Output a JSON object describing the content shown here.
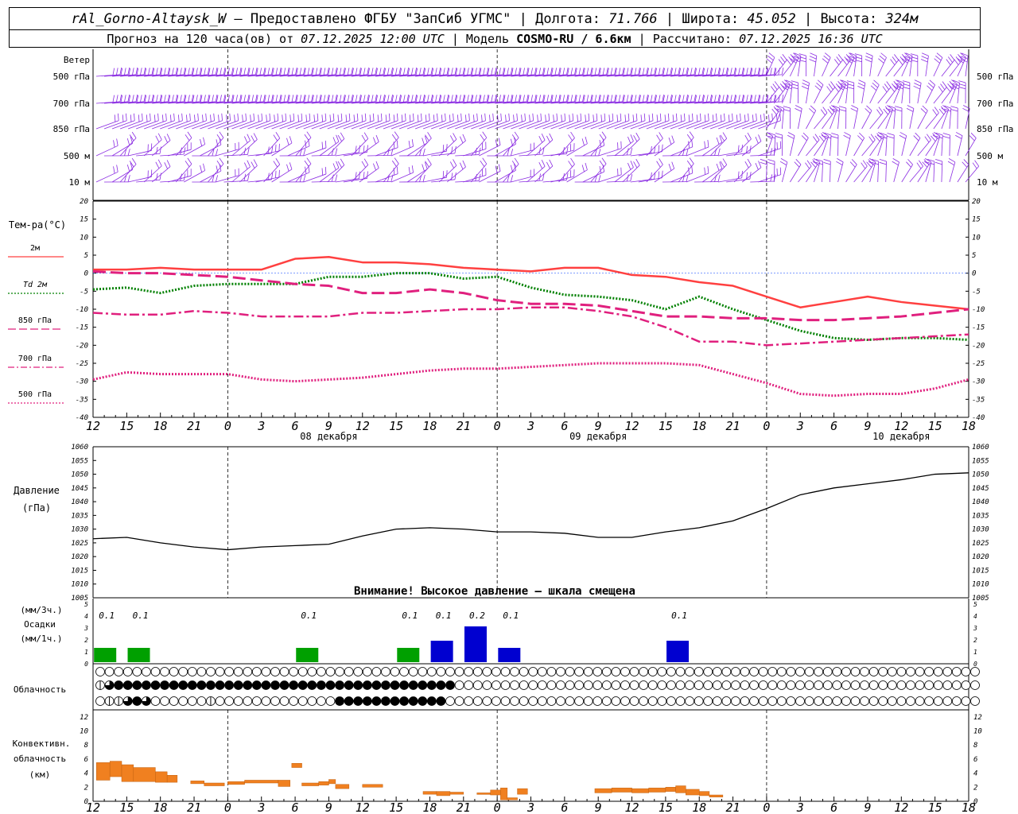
{
  "header": {
    "station": "rAl_Gorno-Altaysk_W",
    "provider": "— Предоставлено ФГБУ \"ЗапСиб УГМС\"",
    "lon_label": "Долгота:",
    "lon_value": "71.766",
    "lat_label": "Широта:",
    "lat_value": "45.052",
    "alt_label": "Высота:",
    "alt_value": "324м",
    "forecast_label": "Прогноз на 120 часа(ов) от",
    "forecast_start": "07.12.2025 12:00 UTC",
    "model_label": "Модель",
    "model_name": "COSMO-RU / 6.6км",
    "calc_label": "Рассчитано:",
    "calc_time": "07.12.2025 16:36 UTC",
    "sep": "|"
  },
  "colors": {
    "wind": "#8a2be2",
    "t2m": "#ff4040",
    "td2m": "#008000",
    "t850": "#e0207e",
    "t700": "#e0207e",
    "t500": "#e0207e",
    "pressure": "#000000",
    "precip_green": "#00a000",
    "precip_blue": "#0000d0",
    "convective": "#f08020"
  },
  "chart_data": {
    "type": "line",
    "x_hours": [
      12,
      15,
      18,
      21,
      0,
      3,
      6,
      9,
      12,
      15,
      18,
      21,
      0,
      3,
      6,
      9,
      12,
      15,
      18,
      21,
      0,
      3,
      6,
      9,
      12,
      15,
      18
    ],
    "x_tick_labels": [
      "12",
      "15",
      "18",
      "21",
      "0",
      "3",
      "6",
      "9",
      "12",
      "15",
      "18",
      "21",
      "0",
      "3",
      "6",
      "9",
      "12",
      "15",
      "18",
      "21",
      "0",
      "3",
      "6",
      "9",
      "12",
      "15",
      "18"
    ],
    "date_labels": [
      {
        "label": "08 декабря",
        "at_index": 7
      },
      {
        "label": "09 декабря",
        "at_index": 15
      },
      {
        "label": "10 декабря",
        "at_index": 24
      }
    ],
    "wind_panel": {
      "label": "Ветер",
      "levels": [
        "500 гПа",
        "700 гПа",
        "850 гПа",
        "500 м",
        "10 м"
      ]
    },
    "temperature_panel": {
      "ylabel": "Тем-ра(°C)",
      "ylim": [
        -40,
        20
      ],
      "yticks": [
        20,
        15,
        10,
        5,
        0,
        -5,
        -10,
        -15,
        -20,
        -25,
        -30,
        -35,
        -40
      ],
      "series": [
        {
          "name": "2м",
          "style": "solid",
          "color": "#ff4040",
          "values": [
            1,
            1,
            1.5,
            1,
            1,
            1,
            4,
            4.5,
            3,
            3,
            2.5,
            1.5,
            1,
            0.5,
            1.5,
            1.5,
            -0.5,
            -1,
            -2.5,
            -3.5,
            -6.5,
            -9.5,
            -8,
            -6.5,
            -8,
            -9,
            -10
          ]
        },
        {
          "name": "Td 2м",
          "style": "dotted",
          "color": "#008000",
          "values": [
            -4.5,
            -4,
            -5.5,
            -3.5,
            -3,
            -3,
            -3,
            -1,
            -1,
            0,
            0,
            -1.5,
            -1,
            -4,
            -6,
            -6.5,
            -7.5,
            -10,
            -6.5,
            -10,
            -13,
            -16,
            -18,
            -18.5,
            -18,
            -18,
            -18.5
          ]
        },
        {
          "name": "850 гПа",
          "style": "longdash",
          "color": "#e0207e",
          "values": [
            0.5,
            0,
            0,
            -0.5,
            -1,
            -2,
            -3,
            -3.5,
            -5.5,
            -5.5,
            -4.5,
            -5.5,
            -7.5,
            -8.5,
            -8.5,
            -9,
            -10.5,
            -12,
            -12,
            -12.5,
            -12.5,
            -13,
            -13,
            -12.5,
            -12,
            -11,
            -10
          ]
        },
        {
          "name": "700 гПа",
          "style": "dashdot",
          "color": "#e0207e",
          "values": [
            -11,
            -11.5,
            -11.5,
            -10.5,
            -11,
            -12,
            -12,
            -12,
            -11,
            -11,
            -10.5,
            -10,
            -10,
            -9.5,
            -9.5,
            -10.5,
            -12,
            -15,
            -19,
            -19,
            -20,
            -19.5,
            -19,
            -18.5,
            -18,
            -17.5,
            -17
          ]
        },
        {
          "name": "500 гПа",
          "style": "dotted",
          "color": "#e0207e",
          "values": [
            -29.5,
            -27.5,
            -28,
            -28,
            -28,
            -29.5,
            -30,
            -29.5,
            -29,
            -28,
            -27,
            -26.5,
            -26.5,
            -26,
            -25.5,
            -25,
            -25,
            -25,
            -25.5,
            -28,
            -30.5,
            -33.5,
            -34,
            -33.5,
            -33.5,
            -32,
            -29.5
          ]
        }
      ]
    },
    "pressure_panel": {
      "ylabel_1": "Давление",
      "ylabel_2": "(гПа)",
      "ylim": [
        1005,
        1060
      ],
      "yticks": [
        1060,
        1055,
        1050,
        1045,
        1040,
        1035,
        1030,
        1025,
        1020,
        1015,
        1010,
        1005
      ],
      "values": [
        1026.5,
        1027,
        1025,
        1023.5,
        1022.5,
        1023.5,
        1024,
        1024.5,
        1027.5,
        1030,
        1030.5,
        1030,
        1029,
        1029,
        1028.5,
        1027,
        1027,
        1029,
        1030.5,
        1033,
        1037.5,
        1042.5,
        1045,
        1046.5,
        1048,
        1050,
        1050.5
      ],
      "warning": "Внимание! Высокое давление – шкала смещена"
    },
    "precip_panel": {
      "ylabel_1": "(мм/3ч.)",
      "ylabel_2": "Осадки",
      "ylabel_3": "(мм/1ч.)",
      "ylim": [
        0,
        5
      ],
      "yticks": [
        5,
        4,
        3,
        2,
        1,
        0
      ],
      "labels": [
        {
          "text": "0.1",
          "hour_index": 0.5
        },
        {
          "text": "0.1",
          "hour_index": 1.5
        },
        {
          "text": "0.1",
          "hour_index": 6.5
        },
        {
          "text": "0.1",
          "hour_index": 9.5
        },
        {
          "text": "0.1",
          "hour_index": 10.5
        },
        {
          "text": "0.2",
          "hour_index": 11.5
        },
        {
          "text": "0.1",
          "hour_index": 12.5
        },
        {
          "text": "0.1",
          "hour_index": 17.5
        }
      ],
      "bars": [
        {
          "hour_index": 0.5,
          "value": 0.1,
          "kind": "green"
        },
        {
          "hour_index": 1.5,
          "value": 0.1,
          "kind": "green"
        },
        {
          "hour_index": 6.5,
          "value": 0.1,
          "kind": "green"
        },
        {
          "hour_index": 9.5,
          "value": 0.1,
          "kind": "green"
        },
        {
          "hour_index": 10.5,
          "value": 0.15,
          "kind": "blue"
        },
        {
          "hour_index": 11.5,
          "value": 0.25,
          "kind": "blue"
        },
        {
          "hour_index": 12.5,
          "value": 0.1,
          "kind": "blue"
        },
        {
          "hour_index": 17.5,
          "value": 0.15,
          "kind": "blue"
        }
      ]
    },
    "cloud_panel": {
      "label": "Облачность",
      "rows": [
        [
          0,
          0,
          0,
          0,
          0,
          0,
          0,
          0,
          0,
          0,
          0,
          0,
          0,
          0,
          0,
          0,
          0,
          0,
          0,
          0,
          0,
          0,
          0,
          0,
          0,
          0,
          0,
          0,
          0,
          0,
          0,
          0,
          0,
          0,
          0,
          0,
          0,
          0,
          0,
          0,
          0,
          0,
          0,
          0,
          0,
          0,
          0,
          0,
          0,
          0,
          0,
          0,
          0,
          0,
          0,
          0,
          0,
          0,
          0,
          0,
          0,
          0,
          0,
          0,
          0,
          0,
          0,
          0,
          0,
          0,
          0,
          0,
          0,
          0,
          0,
          0,
          0,
          0,
          0,
          0,
          0,
          0,
          0,
          0,
          0,
          0,
          0,
          0,
          0,
          0,
          0,
          0,
          0,
          0,
          0,
          0,
          0,
          0,
          0,
          0,
          0,
          0,
          0,
          0,
          0,
          0,
          0,
          0,
          0,
          0,
          0,
          0,
          0,
          0,
          0,
          0,
          0,
          0,
          0,
          0,
          0,
          0
        ],
        [
          2,
          3,
          4,
          4,
          4,
          4,
          4,
          4,
          4,
          4,
          4,
          4,
          4,
          4,
          4,
          4,
          4,
          4,
          4,
          4,
          4,
          4,
          4,
          4,
          4,
          4,
          4,
          4,
          4,
          4,
          4,
          4,
          4,
          4,
          4,
          4,
          4,
          4,
          4,
          0,
          0,
          0,
          0,
          0,
          0,
          0,
          0,
          0,
          0,
          0,
          0,
          0,
          0,
          0,
          0,
          0,
          0,
          0,
          0,
          0,
          0,
          0,
          0,
          0,
          0,
          0,
          0,
          0,
          0,
          0,
          0,
          0,
          0,
          0,
          0,
          0,
          0,
          0,
          0,
          0,
          0,
          0,
          0,
          0,
          0,
          0,
          0,
          0,
          0,
          0,
          0,
          0,
          0,
          0,
          0,
          0,
          0,
          0,
          0,
          0,
          0,
          0,
          0,
          0,
          0,
          0,
          0,
          0,
          0,
          0,
          0,
          0,
          0,
          0,
          0,
          0,
          0,
          0,
          0,
          0,
          0
        ],
        [
          0,
          2,
          2,
          3,
          4,
          3,
          0,
          0,
          0,
          0,
          0,
          0,
          2,
          0,
          0,
          0,
          0,
          0,
          0,
          0,
          0,
          0,
          0,
          0,
          0,
          0,
          4,
          4,
          4,
          4,
          4,
          4,
          4,
          4,
          4,
          4,
          4,
          4,
          0,
          0,
          0,
          0,
          0,
          0,
          0,
          0,
          0,
          0,
          0,
          0,
          0,
          0,
          0,
          0,
          0,
          0,
          0,
          0,
          0,
          0,
          0,
          0,
          0,
          0,
          0,
          0,
          0,
          0,
          0,
          0,
          0,
          0,
          0,
          0,
          0,
          0,
          0,
          0,
          0,
          0,
          0,
          0,
          0,
          0,
          0,
          0,
          0,
          0,
          0,
          0,
          0,
          0,
          0,
          0,
          0,
          0,
          0,
          0,
          0,
          0,
          0,
          0,
          0,
          0,
          0,
          0,
          0,
          0,
          0,
          0,
          0,
          0,
          0,
          0,
          0,
          0,
          0,
          0,
          0,
          0,
          0
        ]
      ]
    },
    "convective_panel": {
      "ylabel_1": "Конвективн.",
      "ylabel_2": "облачность",
      "ylabel_3": "(км)",
      "ylim": [
        0,
        13
      ],
      "yticks": [
        12,
        10,
        8,
        6,
        4,
        2,
        0
      ],
      "boxes": [
        {
          "from": 0.1,
          "to": 0.5,
          "bottom": 3,
          "top": 5.5
        },
        {
          "from": 0.5,
          "to": 0.85,
          "bottom": 3.5,
          "top": 5.7
        },
        {
          "from": 0.85,
          "to": 1.2,
          "bottom": 2.8,
          "top": 5.2
        },
        {
          "from": 1.2,
          "to": 1.85,
          "bottom": 2.8,
          "top": 4.8
        },
        {
          "from": 1.85,
          "to": 2.2,
          "bottom": 2.7,
          "top": 4.2
        },
        {
          "from": 2.2,
          "to": 2.5,
          "bottom": 2.7,
          "top": 3.7
        },
        {
          "from": 2.9,
          "to": 3.3,
          "bottom": 2.5,
          "top": 2.9
        },
        {
          "from": 3.3,
          "to": 3.9,
          "bottom": 2.2,
          "top": 2.6
        },
        {
          "from": 4,
          "to": 4.5,
          "bottom": 2.4,
          "top": 2.8
        },
        {
          "from": 4.5,
          "to": 5.5,
          "bottom": 2.6,
          "top": 3
        },
        {
          "from": 5.5,
          "to": 5.85,
          "bottom": 2.1,
          "top": 3
        },
        {
          "from": 5.9,
          "to": 6.2,
          "bottom": 4.8,
          "top": 5.4
        },
        {
          "from": 6.2,
          "to": 6.7,
          "bottom": 2.2,
          "top": 2.6
        },
        {
          "from": 6.7,
          "to": 7,
          "bottom": 2.3,
          "top": 2.8
        },
        {
          "from": 7,
          "to": 7.2,
          "bottom": 2.5,
          "top": 3.1
        },
        {
          "from": 7.2,
          "to": 7.6,
          "bottom": 1.8,
          "top": 2.4
        },
        {
          "from": 8,
          "to": 8.6,
          "bottom": 2,
          "top": 2.4
        },
        {
          "from": 9.8,
          "to": 10.2,
          "bottom": 1,
          "top": 1.4
        },
        {
          "from": 10.2,
          "to": 10.6,
          "bottom": 0.8,
          "top": 1.4
        },
        {
          "from": 10.6,
          "to": 11,
          "bottom": 1,
          "top": 1.3
        },
        {
          "from": 11.4,
          "to": 11.8,
          "bottom": 1,
          "top": 1.2
        },
        {
          "from": 11.8,
          "to": 12.1,
          "bottom": 0.9,
          "top": 1.6
        },
        {
          "from": 12.1,
          "to": 12.3,
          "bottom": 0.2,
          "top": 1.9
        },
        {
          "from": 12.3,
          "to": 12.6,
          "bottom": 0.2,
          "top": 0.5
        },
        {
          "from": 12.6,
          "to": 12.9,
          "bottom": 1,
          "top": 1.8
        },
        {
          "from": 14.9,
          "to": 15.4,
          "bottom": 1.2,
          "top": 1.8
        },
        {
          "from": 15.4,
          "to": 16,
          "bottom": 1.3,
          "top": 1.9
        },
        {
          "from": 16,
          "to": 16.5,
          "bottom": 1.2,
          "top": 1.8
        },
        {
          "from": 16.5,
          "to": 17,
          "bottom": 1.3,
          "top": 1.9
        },
        {
          "from": 17,
          "to": 17.3,
          "bottom": 1.4,
          "top": 2
        },
        {
          "from": 17.3,
          "to": 17.6,
          "bottom": 1.2,
          "top": 2.2
        },
        {
          "from": 17.6,
          "to": 18,
          "bottom": 0.9,
          "top": 1.7
        },
        {
          "from": 18,
          "to": 18.3,
          "bottom": 0.8,
          "top": 1.4
        },
        {
          "from": 18.3,
          "to": 18.7,
          "bottom": 0.6,
          "top": 0.9
        }
      ]
    }
  }
}
